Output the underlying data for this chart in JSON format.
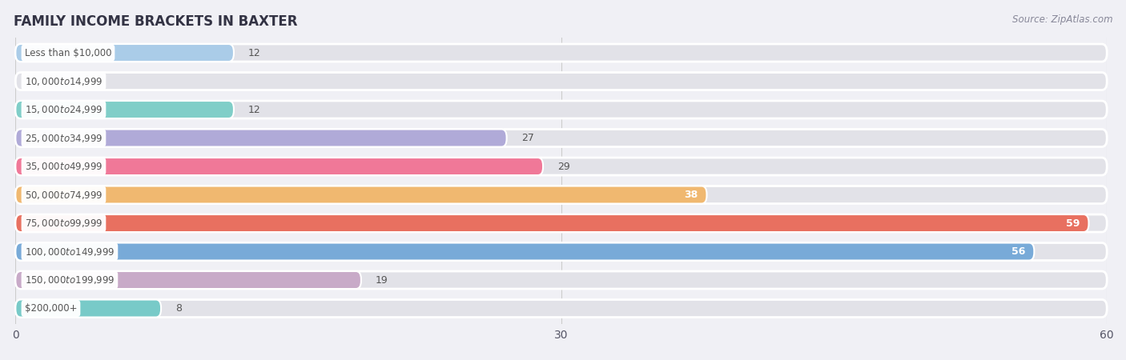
{
  "title": "FAMILY INCOME BRACKETS IN BAXTER",
  "source": "Source: ZipAtlas.com",
  "categories": [
    "Less than $10,000",
    "$10,000 to $14,999",
    "$15,000 to $24,999",
    "$25,000 to $34,999",
    "$35,000 to $49,999",
    "$50,000 to $74,999",
    "$75,000 to $99,999",
    "$100,000 to $149,999",
    "$150,000 to $199,999",
    "$200,000+"
  ],
  "values": [
    12,
    0,
    12,
    27,
    29,
    38,
    59,
    56,
    19,
    8
  ],
  "bar_colors": [
    "#aacce8",
    "#c8aad8",
    "#80cec8",
    "#b0aad8",
    "#f07898",
    "#f0b870",
    "#e87060",
    "#78aad8",
    "#c8aac8",
    "#78cac8"
  ],
  "xlim": [
    0,
    60
  ],
  "xticks": [
    0,
    30,
    60
  ],
  "background_color": "#f0f0f5",
  "bar_bg_color": "#e2e2e8",
  "label_color": "#555555",
  "value_color_inside": "#ffffff",
  "value_color_outside": "#555555",
  "figsize": [
    14.06,
    4.5
  ],
  "dpi": 100,
  "bar_height": 0.62,
  "inside_threshold": 35
}
